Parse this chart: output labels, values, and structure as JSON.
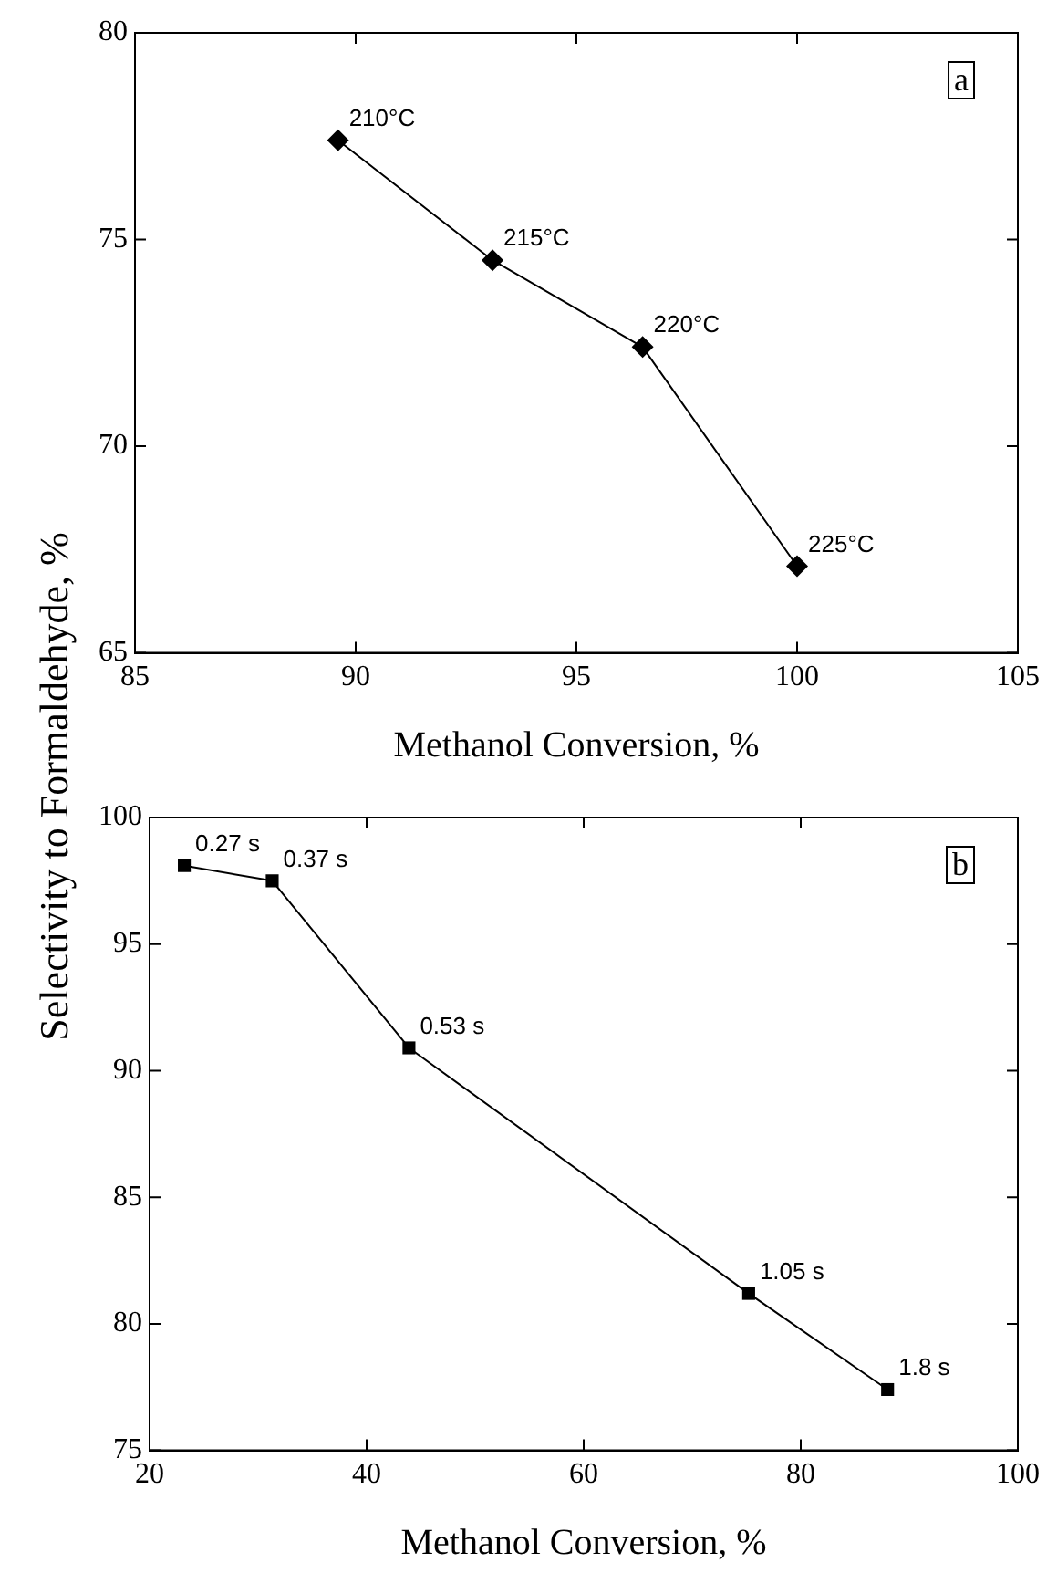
{
  "chart_data": [
    {
      "type": "line",
      "xlabel": "Methanol Conversion, %",
      "ylabel": "Selectivity to Formaldehyde, %",
      "x": [
        89.6,
        93.1,
        96.5,
        100.0
      ],
      "values": [
        77.4,
        74.5,
        72.4,
        67.1
      ],
      "color": "#000000",
      "marker": "diamond",
      "line_style": "solid",
      "xlim": [
        85,
        105
      ],
      "xticks": [
        85,
        90,
        95,
        100,
        105
      ],
      "ylim": [
        65,
        80
      ],
      "yticks": [
        65,
        70,
        75,
        80
      ],
      "grid": false,
      "legend": false,
      "annotations": [
        {
          "text": "210°C",
          "x": 89.6,
          "y": 77.4
        },
        {
          "text": "215°C",
          "x": 93.1,
          "y": 74.5
        },
        {
          "text": "220°C",
          "x": 96.5,
          "y": 72.4
        },
        {
          "text": "225°C",
          "x": 100.0,
          "y": 67.1
        },
        "a"
      ]
    },
    {
      "type": "line",
      "xlabel": "Methanol Conversion, %",
      "x": [
        23.2,
        31.3,
        43.9,
        75.2,
        88.0
      ],
      "values": [
        98.1,
        97.5,
        90.9,
        81.2,
        77.4
      ],
      "color": "#000000",
      "marker": "square",
      "line_style": "solid",
      "xlim": [
        20,
        100
      ],
      "xticks": [
        20,
        40,
        60,
        80,
        100
      ],
      "ylim": [
        75,
        100
      ],
      "yticks": [
        75,
        80,
        85,
        90,
        95,
        100
      ],
      "grid": false,
      "legend": false,
      "annotations": [
        {
          "text": "0.27 s",
          "x": 23.2,
          "y": 98.1
        },
        {
          "text": "0.37 s",
          "x": 31.3,
          "y": 97.5
        },
        {
          "text": "0.53 s",
          "x": 43.9,
          "y": 90.9
        },
        {
          "text": "1.05 s",
          "x": 75.2,
          "y": 81.2
        },
        {
          "text": "1.8 s",
          "x": 88.0,
          "y": 77.4
        },
        "b"
      ]
    }
  ]
}
